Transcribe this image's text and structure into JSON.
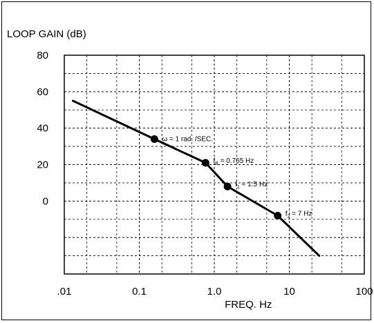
{
  "chart_data": {
    "type": "line",
    "title": "",
    "ylabel": "LOOP GAIN (dB)",
    "xlabel": "FREQ. Hz",
    "x_scale": "log",
    "xlim": [
      0.01,
      100
    ],
    "ylim": [
      -40,
      80
    ],
    "x_ticks": [
      {
        "value": 0.01,
        "label": ".01"
      },
      {
        "value": 0.1,
        "label": "0.1"
      },
      {
        "value": 1.0,
        "label": "1.0"
      },
      {
        "value": 10,
        "label": "10"
      },
      {
        "value": 100,
        "label": "100"
      }
    ],
    "y_ticks": [
      {
        "value": 80,
        "label": "80"
      },
      {
        "value": 60,
        "label": "60"
      },
      {
        "value": 40,
        "label": "40"
      },
      {
        "value": 20,
        "label": "20"
      },
      {
        "value": 0,
        "label": "0"
      }
    ],
    "grid": true,
    "series": [
      {
        "x": [
          0.013,
          0.159,
          0.765,
          1.5,
          7,
          25
        ],
        "y": [
          55,
          34,
          21,
          8,
          -8,
          -30
        ]
      }
    ],
    "annotations": [
      {
        "x": 0.159,
        "y": 34,
        "text": "ω = 1 rad. /SEC."
      },
      {
        "x": 0.765,
        "y": 21,
        "prefix": "f",
        "sub": "B",
        "suffix": " = 0.765 Hz"
      },
      {
        "x": 1.5,
        "y": 8,
        "prefix": "f",
        "sub": "1",
        "suffix": " = 1.5 Hz"
      },
      {
        "x": 7,
        "y": -8,
        "prefix": "f",
        "sub": "2",
        "suffix": " = 7 Hz"
      }
    ],
    "colors": {
      "line": "#000000",
      "grid": "#000000",
      "background": "#ffffff"
    }
  }
}
